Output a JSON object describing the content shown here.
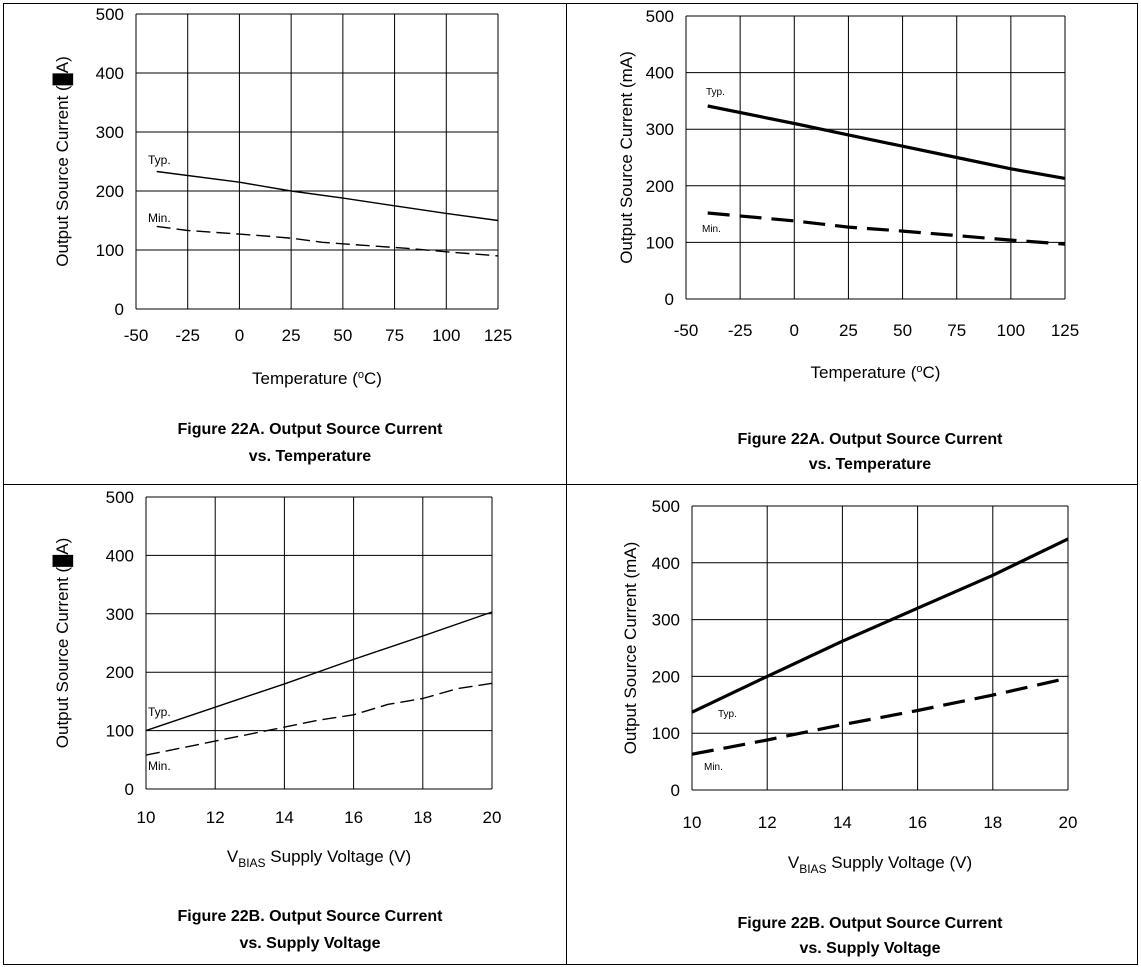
{
  "chart_data": [
    {
      "type": "line",
      "xlabel": "Temperature (°C)",
      "ylabel": "Output Source Current (mA)",
      "ylabel_rendered": [
        "Output Source Current (",
        "A)"
      ],
      "x_ticks": [
        -50,
        -25,
        0,
        25,
        50,
        75,
        100,
        125
      ],
      "y_ticks": [
        0,
        100,
        200,
        300,
        400,
        500
      ],
      "xlim": [
        -50,
        125
      ],
      "ylim": [
        0,
        500
      ],
      "grid": true,
      "series": [
        {
          "name": "Typ.",
          "style": "solid",
          "weight": "thin",
          "points": [
            [
              -40,
              233
            ],
            [
              0,
              215
            ],
            [
              25,
              200
            ],
            [
              50,
              188
            ],
            [
              75,
              175
            ],
            [
              100,
              162
            ],
            [
              125,
              150
            ]
          ]
        },
        {
          "name": "Min.",
          "style": "dashed",
          "weight": "thin",
          "points": [
            [
              -40,
              140
            ],
            [
              -25,
              133
            ],
            [
              0,
              127
            ],
            [
              15,
              123
            ],
            [
              25,
              120
            ],
            [
              40,
              113
            ],
            [
              60,
              108
            ],
            [
              80,
              103
            ],
            [
              100,
              97
            ],
            [
              125,
              90
            ]
          ]
        }
      ],
      "caption": [
        "Figure 22A. Output Source Current",
        "vs. Temperature"
      ]
    },
    {
      "type": "line",
      "xlabel": "Temperature (°C)",
      "ylabel": "Output Source Current (mA)",
      "x_ticks": [
        -50,
        -25,
        0,
        25,
        50,
        75,
        100,
        125
      ],
      "y_ticks": [
        0,
        100,
        200,
        300,
        400,
        500
      ],
      "xlim": [
        -50,
        125
      ],
      "ylim": [
        0,
        500
      ],
      "grid": true,
      "series": [
        {
          "name": "Typ.",
          "style": "solid",
          "weight": "bold",
          "points": [
            [
              -40,
              341
            ],
            [
              0,
              310
            ],
            [
              25,
              290
            ],
            [
              50,
              270
            ],
            [
              75,
              250
            ],
            [
              100,
              230
            ],
            [
              125,
              213
            ]
          ]
        },
        {
          "name": "Min.",
          "style": "dashed",
          "weight": "bold",
          "points": [
            [
              -40,
              152
            ],
            [
              0,
              138
            ],
            [
              25,
              127
            ],
            [
              50,
              120
            ],
            [
              75,
              112
            ],
            [
              100,
              104
            ],
            [
              125,
              97
            ]
          ]
        }
      ],
      "caption": [
        "Figure 22A. Output Source Current",
        "vs. Temperature"
      ]
    },
    {
      "type": "line",
      "xlabel": "VBIAS Supply Voltage (V)",
      "xlabel_rendered": [
        "V",
        "BIAS",
        "  Supply Voltage (V)"
      ],
      "ylabel": "Output Source Current (mA)",
      "ylabel_rendered": [
        "Output Source Current (",
        "A)"
      ],
      "x_ticks": [
        10,
        12,
        14,
        16,
        18,
        20
      ],
      "y_ticks": [
        0,
        100,
        200,
        300,
        400,
        500
      ],
      "xlim": [
        10,
        20
      ],
      "ylim": [
        0,
        500
      ],
      "grid": true,
      "series": [
        {
          "name": "Typ.",
          "style": "solid",
          "weight": "thin",
          "points": [
            [
              10,
              100
            ],
            [
              12,
              140
            ],
            [
              14,
              180
            ],
            [
              16,
              222
            ],
            [
              18,
              262
            ],
            [
              20,
              303
            ]
          ]
        },
        {
          "name": "Min.",
          "style": "dashed",
          "weight": "thin",
          "points": [
            [
              10,
              58
            ],
            [
              12,
              82
            ],
            [
              13.5,
              100
            ],
            [
              15,
              118
            ],
            [
              16,
              127
            ],
            [
              17,
              145
            ],
            [
              18,
              155
            ],
            [
              19,
              172
            ],
            [
              20,
              181
            ]
          ]
        }
      ],
      "caption": [
        "Figure 22B. Output Source Current",
        "vs. Supply Voltage"
      ]
    },
    {
      "type": "line",
      "xlabel": "VBIAS Supply Voltage (V)",
      "xlabel_rendered": [
        "V",
        "BIAS",
        "Supply Voltage (V)"
      ],
      "ylabel": "Output Source Current (mA)",
      "x_ticks": [
        10,
        12,
        14,
        16,
        18,
        20
      ],
      "y_ticks": [
        0,
        100,
        200,
        300,
        400,
        500
      ],
      "xlim": [
        10,
        20
      ],
      "ylim": [
        0,
        500
      ],
      "grid": true,
      "series": [
        {
          "name": "Typ.",
          "style": "solid",
          "weight": "bold",
          "points": [
            [
              10,
              137
            ],
            [
              12,
              200
            ],
            [
              14,
              262
            ],
            [
              16,
              320
            ],
            [
              18,
              378
            ],
            [
              20,
              442
            ]
          ]
        },
        {
          "name": "Min.",
          "style": "dashed",
          "weight": "bold",
          "points": [
            [
              10,
              63
            ],
            [
              12,
              88
            ],
            [
              14,
              115
            ],
            [
              16,
              140
            ],
            [
              18,
              167
            ],
            [
              20,
              197
            ]
          ]
        }
      ],
      "caption": [
        "Figure 22B. Output Source Current",
        "vs. Supply Voltage"
      ]
    }
  ]
}
